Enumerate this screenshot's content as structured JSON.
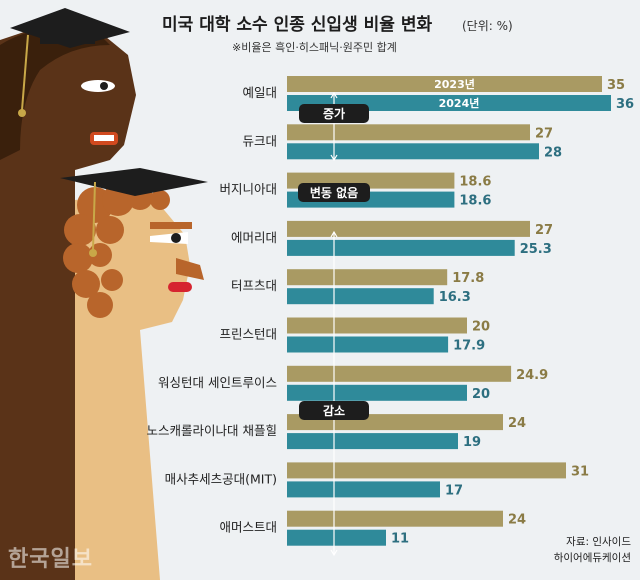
{
  "title": "미국 대학 소수 인종 신입생 비율 변화",
  "title_unit": "(단위: %)",
  "subtitle": "※비율은 흑인·히스패닉·원주민 합계",
  "source_line1": "자료: 인사이드",
  "source_line2": "하이어에듀케이션",
  "watermark": "한국일보",
  "colors": {
    "bar_2023": "#a99a63",
    "bar_2024": "#2f8a9a",
    "label_2023": "#8a7b45",
    "label_2024": "#2d6f80",
    "annotation_bg": "#1d1d1d",
    "background": "#eef1f3"
  },
  "annotations": [
    "증가",
    "변동 없음",
    "감소"
  ],
  "chart_data": {
    "type": "bar",
    "orientation": "horizontal",
    "title": "미국 대학 소수 인종 신입생 비율 변화",
    "unit": "%",
    "categories": [
      "예일대",
      "듀크대",
      "버지니아대",
      "에머리대",
      "터프츠대",
      "프린스턴대",
      "워싱턴대 세인트루이스",
      "노스캐롤라이나대 채플힐",
      "매사추세츠공대(MIT)",
      "애머스트대"
    ],
    "series": [
      {
        "name": "2023년",
        "values": [
          35,
          27,
          18.6,
          27,
          17.8,
          20,
          24.9,
          24,
          31,
          24
        ],
        "labels": [
          "35",
          "27",
          "18.6",
          "27",
          "17.8",
          "20",
          "24.9",
          "24",
          "31",
          "24"
        ]
      },
      {
        "name": "2024년",
        "values": [
          36,
          28,
          18.6,
          25.3,
          16.3,
          17.9,
          20,
          19,
          17,
          11
        ],
        "labels": [
          "36",
          "28",
          "18.6",
          "25.3",
          "16.3",
          "17.9",
          "20",
          "19",
          "17",
          "11"
        ]
      }
    ],
    "xlim": [
      0,
      36
    ],
    "legend": "inside-first-bars",
    "grid": false
  }
}
